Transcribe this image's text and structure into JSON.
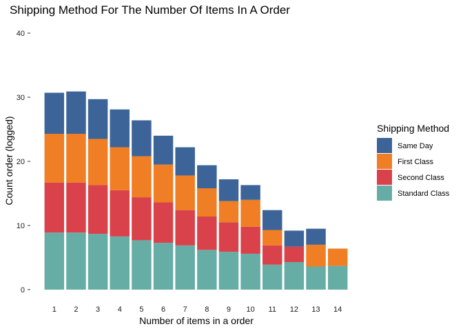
{
  "chart_data": {
    "type": "bar",
    "stacked": true,
    "title": "Shipping Method For The Number Of Items In A Order",
    "xlabel": "Number of items in a order",
    "ylabel": "Count order (logged)",
    "ylim": [
      0,
      40
    ],
    "yticks": [
      "0",
      "10",
      "20",
      "30",
      "40"
    ],
    "grid": false,
    "legend_position": "right",
    "categories": [
      "1",
      "2",
      "3",
      "4",
      "5",
      "6",
      "7",
      "8",
      "9",
      "10",
      "11",
      "12",
      "13",
      "14"
    ],
    "legend": {
      "title": "Shipping Method",
      "items": [
        "Same Day",
        "First Class",
        "Second Class",
        "Standard Class"
      ]
    },
    "series": [
      {
        "name": "Standard Class",
        "color": "#66ADA6",
        "values": [
          8.9,
          8.9,
          8.7,
          8.3,
          7.7,
          7.3,
          6.9,
          6.2,
          5.9,
          5.6,
          3.9,
          4.3,
          3.6,
          3.7
        ]
      },
      {
        "name": "Second Class",
        "color": "#D9414B",
        "values": [
          7.8,
          7.8,
          7.6,
          7.2,
          6.7,
          6.3,
          5.5,
          5.2,
          4.6,
          4.2,
          3.0,
          2.4,
          0,
          0
        ]
      },
      {
        "name": "First Class",
        "color": "#EF7E24",
        "values": [
          7.6,
          7.6,
          7.2,
          6.7,
          6.4,
          5.9,
          5.4,
          4.4,
          3.3,
          4.2,
          2.4,
          0,
          3.4,
          2.7
        ]
      },
      {
        "name": "Same Day",
        "color": "#3D6498",
        "values": [
          6.4,
          6.6,
          6.2,
          5.9,
          5.6,
          4.5,
          4.4,
          3.6,
          3.4,
          2.3,
          3.1,
          2.5,
          2.5,
          0
        ]
      }
    ]
  }
}
